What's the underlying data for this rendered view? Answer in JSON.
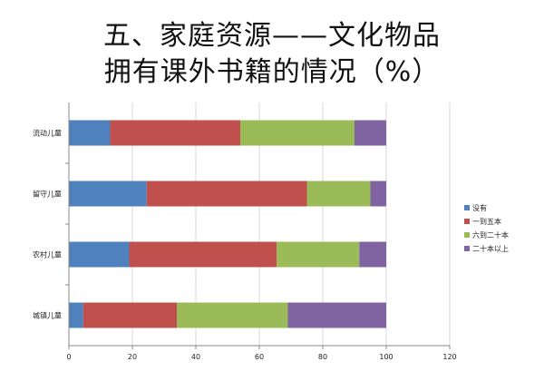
{
  "title": {
    "line1": "五、家庭资源——文化物品",
    "line2": "拥有课外书籍的情况（%）"
  },
  "chart_data": {
    "type": "bar",
    "orientation": "horizontal",
    "stacked": true,
    "categories": [
      "流动儿童",
      "留守儿童",
      "农村儿童",
      "城镇儿童"
    ],
    "series": [
      {
        "name": "没有",
        "color": "#4f81bd",
        "values": [
          13,
          24.5,
          19,
          4.5
        ]
      },
      {
        "name": "一到五本",
        "color": "#c0504d",
        "values": [
          41,
          50.5,
          46.5,
          29.5
        ]
      },
      {
        "name": "六到二十本",
        "color": "#9bbb59",
        "values": [
          36,
          20,
          26,
          35
        ]
      },
      {
        "name": "二十本以上",
        "color": "#8064a2",
        "values": [
          10,
          5,
          8.5,
          31
        ]
      }
    ],
    "xlim": [
      0,
      120
    ],
    "xticks": [
      "0",
      "20",
      "40",
      "60",
      "80",
      "100",
      "120"
    ],
    "legend_position": "right",
    "grid": true
  }
}
